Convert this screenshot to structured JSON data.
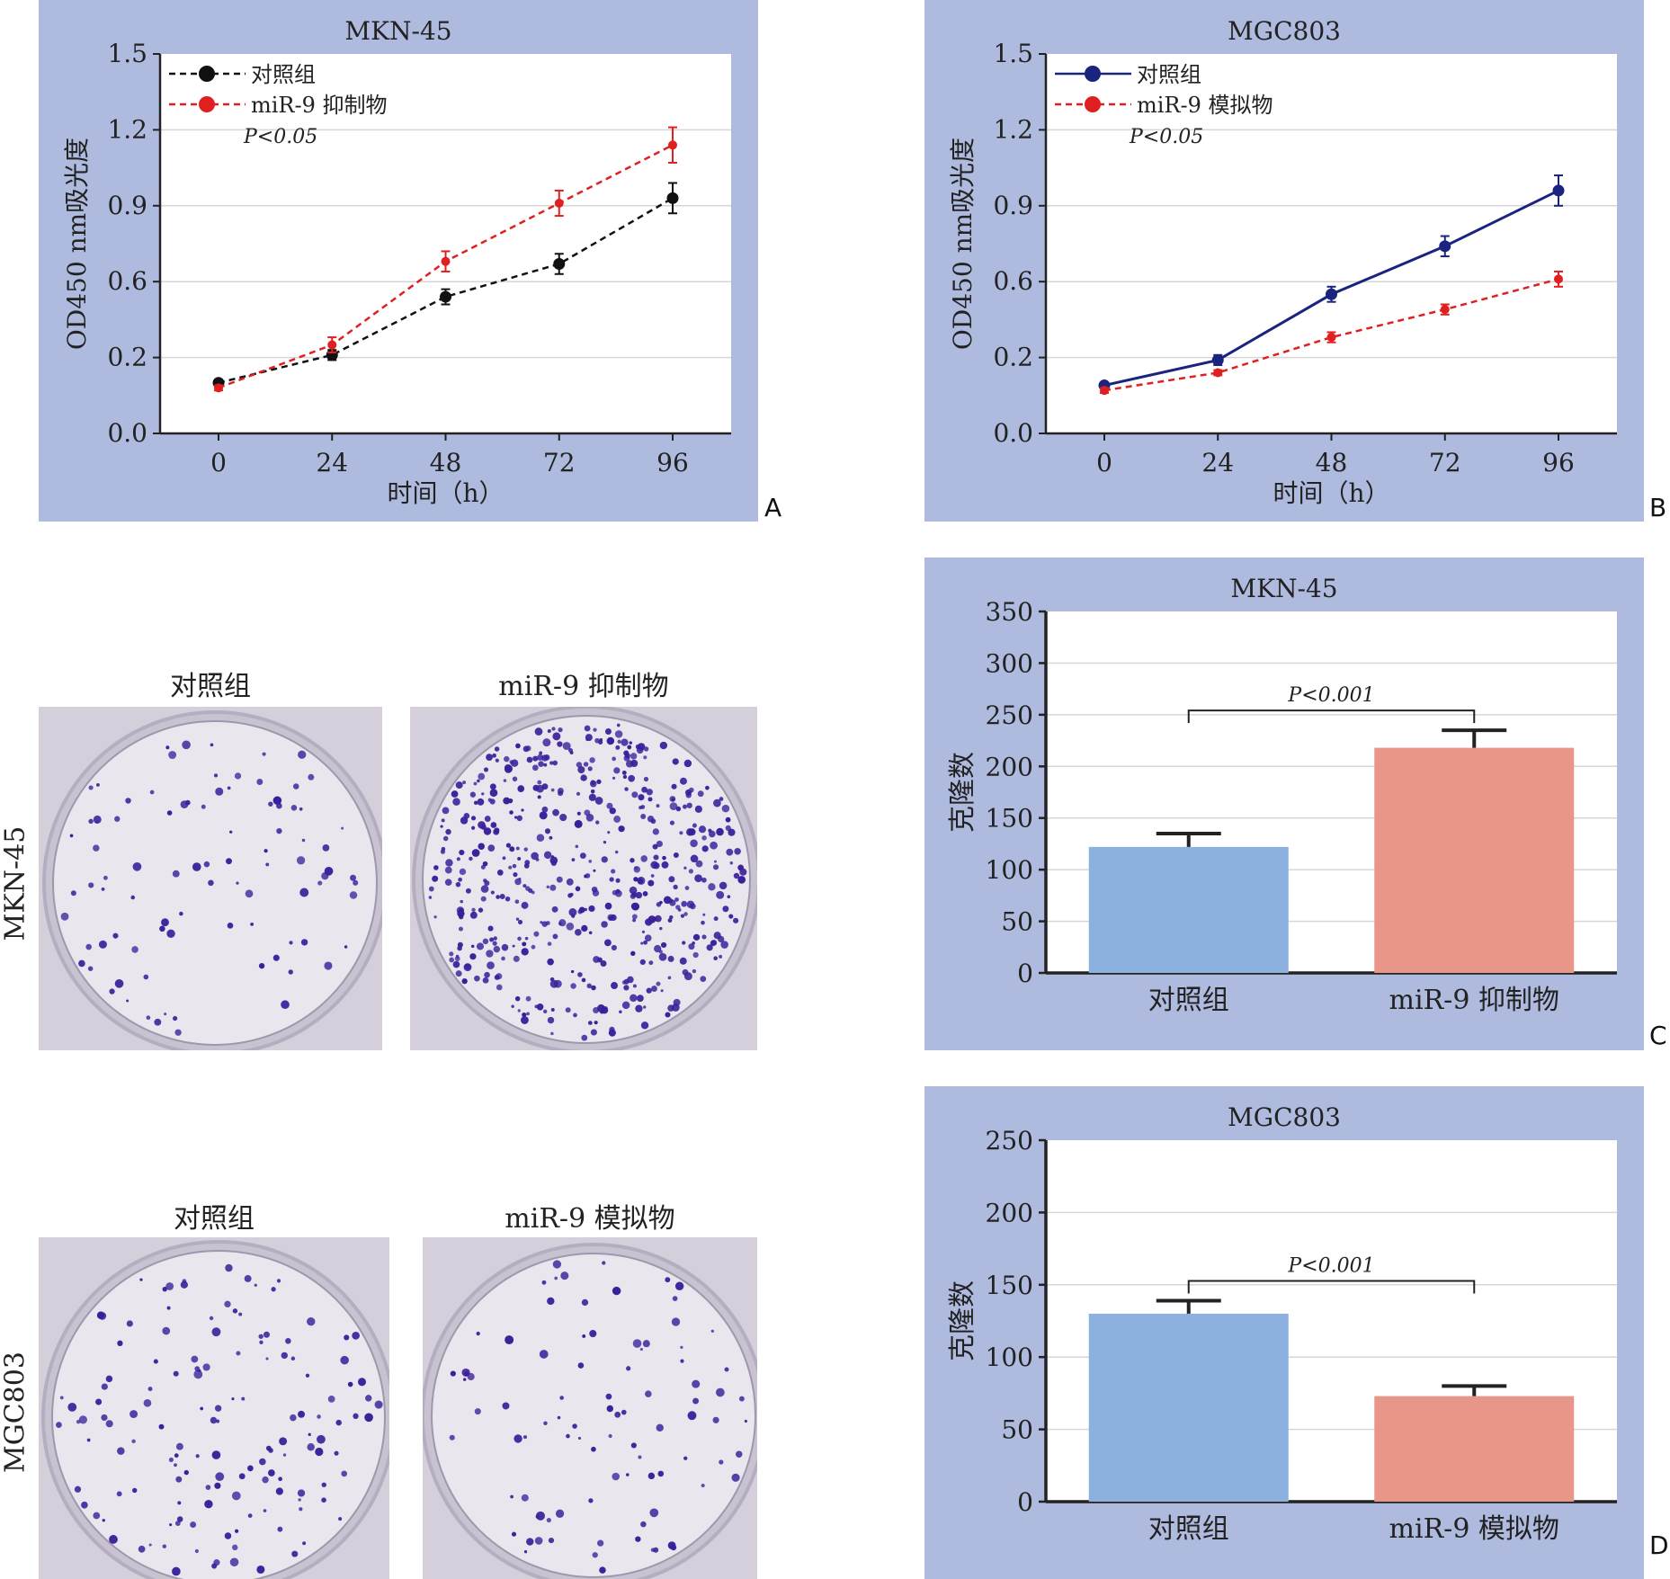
{
  "colors": {
    "panel_bg": "#aebbdf",
    "control_black": "#111111",
    "control_navy": "#1a237e",
    "treat_red": "#e02020",
    "bar_blue": "#8db1df",
    "bar_salmon": "#e8968a",
    "colony": "#3a1f9a"
  },
  "panel_letters": {
    "a": "A",
    "b": "B",
    "c": "C",
    "d": "D"
  },
  "photos": {
    "row1_label": "MKN-45",
    "row2_label": "MGC803",
    "row1": [
      {
        "title": "对照组",
        "colony_density": "sparse"
      },
      {
        "title": "miR-9 抑制物",
        "colony_density": "dense"
      }
    ],
    "row2": [
      {
        "title": "对照组",
        "colony_density": "moderate"
      },
      {
        "title": "miR-9 模拟物",
        "colony_density": "sparse"
      }
    ]
  },
  "chart_data": [
    {
      "id": "A",
      "type": "line",
      "title": "MKN-45",
      "xlabel": "时间（h）",
      "ylabel": "OD450 nm吸光度",
      "x": [
        0,
        24,
        48,
        72,
        96
      ],
      "ylim": [
        0,
        1.5
      ],
      "y_ticks": [
        "0.0",
        "0.2",
        "0.6",
        "0.9",
        "1.2",
        "1.5"
      ],
      "annotation": "P<0.05",
      "legend_position": "top-left",
      "grid": true,
      "series": [
        {
          "name": "对照组",
          "color": "#111111",
          "style": "dashed",
          "values": [
            0.2,
            0.31,
            0.54,
            0.67,
            0.93
          ],
          "errors": [
            0.01,
            0.02,
            0.03,
            0.04,
            0.06
          ]
        },
        {
          "name": "miR-9 抑制物",
          "color": "#e02020",
          "style": "dashed",
          "values": [
            0.18,
            0.35,
            0.68,
            0.91,
            1.14
          ],
          "errors": [
            0.01,
            0.03,
            0.04,
            0.05,
            0.07
          ]
        }
      ]
    },
    {
      "id": "B",
      "type": "line",
      "title": "MGC803",
      "xlabel": "时间（h）",
      "ylabel": "OD450 nm吸光度",
      "x": [
        0,
        24,
        48,
        72,
        96
      ],
      "ylim": [
        0,
        1.5
      ],
      "y_ticks": [
        "0.0",
        "0.2",
        "0.6",
        "0.9",
        "1.2",
        "1.5"
      ],
      "annotation": "P<0.05",
      "legend_position": "top-left",
      "grid": true,
      "series": [
        {
          "name": "对照组",
          "color": "#1a237e",
          "style": "solid",
          "values": [
            0.19,
            0.29,
            0.55,
            0.74,
            0.96
          ],
          "errors": [
            0.01,
            0.02,
            0.03,
            0.04,
            0.06
          ]
        },
        {
          "name": "miR-9 模拟物",
          "color": "#e02020",
          "style": "dashed",
          "values": [
            0.17,
            0.24,
            0.38,
            0.49,
            0.61
          ],
          "errors": [
            0.01,
            0.01,
            0.02,
            0.02,
            0.03
          ]
        }
      ]
    },
    {
      "id": "C",
      "type": "bar",
      "title": "MKN-45",
      "ylabel": "克隆数",
      "categories": [
        "对照组",
        "miR-9 抑制物"
      ],
      "values": [
        122,
        218
      ],
      "errors": [
        13,
        17
      ],
      "bar_colors": [
        "#8db1df",
        "#e8968a"
      ],
      "ylim": [
        0,
        350
      ],
      "y_ticks": [
        0,
        50,
        100,
        150,
        200,
        250,
        300,
        350
      ],
      "annotation": "P<0.001",
      "grid": true
    },
    {
      "id": "D",
      "type": "bar",
      "title": "MGC803",
      "ylabel": "克隆数",
      "categories": [
        "对照组",
        "miR-9 模拟物"
      ],
      "values": [
        130,
        73
      ],
      "errors": [
        9,
        7
      ],
      "bar_colors": [
        "#8db1df",
        "#e8968a"
      ],
      "ylim": [
        0,
        250
      ],
      "y_ticks": [
        0,
        50,
        100,
        150,
        200,
        250
      ],
      "annotation": "P<0.001",
      "grid": true
    }
  ]
}
